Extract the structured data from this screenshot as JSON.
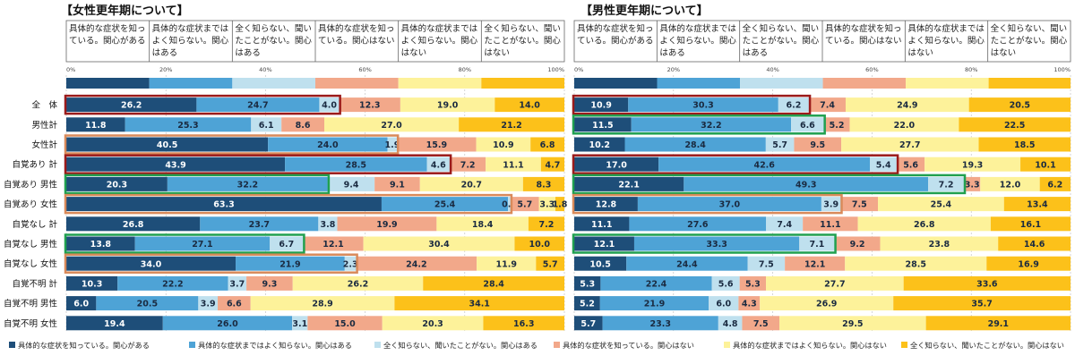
{
  "colors": {
    "c1": "#1e4e79",
    "c2": "#4ea3d6",
    "c3": "#bfe0ee",
    "c4": "#f2a88a",
    "c5": "#fdf29a",
    "c6": "#fcc11a",
    "highlight_red": "#9b1b1b",
    "highlight_orange": "#d98a5a",
    "highlight_green": "#20a050",
    "grid": "#bbbbbb"
  },
  "legend": [
    "具体的な症状を知っている。関心がある",
    "具体的な症状まではよく知らない。関心はある",
    "全く知らない、聞いたことがない。関心はある",
    "具体的な症状を知っている。関心はない",
    "具体的な症状まではよく知らない。関心はない",
    "全く知らない、聞いたことがない。関心はない"
  ],
  "chart_data": [
    {
      "type": "bar",
      "orientation": "horizontal-stacked-100",
      "title": "【女性更年期について】",
      "xlim": [
        0,
        100
      ],
      "xticks": [
        "0%",
        "20%",
        "40%",
        "60%",
        "80%",
        "100%"
      ],
      "header_categories": [
        "具体的な症状を知っている。関心がある",
        "具体的な症状まではよく知らない。関心はある",
        "全く知らない、聞いたことがない。関心はある",
        "具体的な症状を知っている。関心はない",
        "具体的な症状まではよく知らない。関心はない",
        "全く知らない、聞いたことがない。関心はない"
      ],
      "header_bar": [
        20.0,
        20.0,
        20.0,
        20.0,
        20.0,
        20.0
      ],
      "rows": [
        {
          "label": "全　体",
          "values": [
            26.2,
            24.7,
            4.0,
            12.3,
            19.0,
            14.0
          ],
          "value_labels": [
            "26.2",
            "24.7",
            "4.0",
            "12.3",
            "19.0",
            "14.0"
          ],
          "highlight": "red",
          "highlight_upto": 3
        },
        {
          "label": "男性計",
          "values": [
            11.8,
            25.3,
            6.1,
            8.6,
            27.0,
            21.2
          ],
          "value_labels": [
            "11.8",
            "25.3",
            "6.1",
            "8.6",
            "27.0",
            "21.2"
          ]
        },
        {
          "label": "女性計",
          "values": [
            40.5,
            24.0,
            1.9,
            15.9,
            10.9,
            6.8
          ],
          "value_labels": [
            "40.5",
            "24.0",
            "1.9",
            "15.9",
            "10.9",
            "6.8"
          ],
          "highlight": "orange",
          "highlight_upto": 3
        },
        {
          "label": "自覚あり 計",
          "values": [
            43.9,
            28.5,
            4.6,
            7.2,
            11.1,
            4.7
          ],
          "value_labels": [
            "43.9",
            "28.5",
            "4.6",
            "7.2",
            "11.1",
            "4.7"
          ],
          "highlight": "red",
          "highlight_upto": 3
        },
        {
          "label": "自覚あり 男性",
          "values": [
            20.3,
            32.2,
            9.4,
            9.1,
            20.7,
            8.3
          ],
          "value_labels": [
            "20.3",
            "32.2",
            "9.4",
            "9.1",
            "20.7",
            "8.3"
          ],
          "highlight": "green",
          "highlight_upto": 2
        },
        {
          "label": "自覚あり 女性",
          "values": [
            63.3,
            25.4,
            0.5,
            5.7,
            3.3,
            1.8
          ],
          "value_labels": [
            "63.3",
            "25.4",
            "0.5",
            "5.7",
            "3.3",
            "1.8"
          ],
          "highlight": "orange",
          "highlight_upto": 3
        },
        {
          "label": "自覚なし 計",
          "values": [
            26.8,
            23.7,
            3.8,
            19.9,
            18.4,
            7.2
          ],
          "value_labels": [
            "26.8",
            "23.7",
            "3.8",
            "19.9",
            "18.4",
            "7.2"
          ]
        },
        {
          "label": "自覚なし 男性",
          "values": [
            13.8,
            27.1,
            6.7,
            12.1,
            30.4,
            10.0
          ],
          "value_labels": [
            "13.8",
            "27.1",
            "6.7",
            "12.1",
            "30.4",
            "10.0"
          ],
          "highlight": "green",
          "highlight_upto": 3
        },
        {
          "label": "自覚なし 女性",
          "values": [
            34.0,
            21.9,
            2.3,
            24.2,
            11.9,
            5.7
          ],
          "value_labels": [
            "34.0",
            "21.9",
            "2.3",
            "24.2",
            "11.9",
            "5.7"
          ],
          "highlight": "orange",
          "highlight_upto": 3
        },
        {
          "label": "自覚不明 計",
          "values": [
            10.3,
            22.2,
            3.7,
            9.3,
            26.2,
            28.4
          ],
          "value_labels": [
            "10.3",
            "22.2",
            "3.7",
            "9.3",
            "26.2",
            "28.4"
          ]
        },
        {
          "label": "自覚不明 男性",
          "values": [
            6.0,
            20.5,
            3.9,
            6.6,
            28.9,
            34.1
          ],
          "value_labels": [
            "6.0",
            "20.5",
            "3.9",
            "6.6",
            "28.9",
            "34.1"
          ]
        },
        {
          "label": "自覚不明 女性",
          "values": [
            19.4,
            26.0,
            3.1,
            15.0,
            20.3,
            16.3
          ],
          "value_labels": [
            "19.4",
            "26.0",
            "3.1",
            "15.0",
            "20.3",
            "16.3"
          ]
        }
      ]
    },
    {
      "type": "bar",
      "orientation": "horizontal-stacked-100",
      "title": "【男性更年期について】",
      "xlim": [
        0,
        100
      ],
      "xticks": [
        "0%",
        "20%",
        "40%",
        "60%",
        "80%",
        "100%"
      ],
      "header_categories": [
        "具体的な症状を知っている。関心がある",
        "具体的な症状まではよく知らない。関心はある",
        "全く知らない、聞いたことがない。関心はある",
        "具体的な症状を知っている。関心はない",
        "具体的な症状まではよく知らない。関心はない",
        "全く知らない、聞いたことがない。関心はない"
      ],
      "header_bar": [
        16.7,
        16.7,
        16.7,
        16.7,
        16.7,
        16.5
      ],
      "rows": [
        {
          "label": "全　体",
          "values": [
            10.9,
            30.3,
            6.2,
            7.4,
            24.9,
            20.5
          ],
          "value_labels": [
            "10.9",
            "30.3",
            "6.2",
            "7.4",
            "24.9",
            "20.5"
          ],
          "highlight": "red",
          "highlight_upto": 3
        },
        {
          "label": "男性計",
          "values": [
            11.5,
            32.2,
            6.6,
            5.2,
            22.0,
            22.5
          ],
          "value_labels": [
            "11.5",
            "32.2",
            "6.6",
            "5.2",
            "22.0",
            "22.5"
          ],
          "highlight": "green",
          "highlight_upto": 3
        },
        {
          "label": "女性計",
          "values": [
            10.2,
            28.4,
            5.7,
            9.5,
            27.7,
            18.5
          ],
          "value_labels": [
            "10.2",
            "28.4",
            "5.7",
            "9.5",
            "27.7",
            "18.5"
          ]
        },
        {
          "label": "自覚あり 計",
          "values": [
            17.0,
            42.6,
            5.4,
            5.6,
            19.3,
            10.1
          ],
          "value_labels": [
            "17.0",
            "42.6",
            "5.4",
            "5.6",
            "19.3",
            "10.1"
          ],
          "highlight": "red",
          "highlight_upto": 3
        },
        {
          "label": "自覚あり 男性",
          "values": [
            22.1,
            49.3,
            7.2,
            3.3,
            12.0,
            6.2
          ],
          "value_labels": [
            "22.1",
            "49.3",
            "7.2",
            "3.3",
            "12.0",
            "6.2"
          ],
          "highlight": "green",
          "highlight_upto": 3
        },
        {
          "label": "自覚あり 女性",
          "values": [
            12.8,
            37.0,
            3.9,
            7.5,
            25.4,
            13.4
          ],
          "value_labels": [
            "12.8",
            "37.0",
            "3.9",
            "7.5",
            "25.4",
            "13.4"
          ],
          "highlight": "orange",
          "highlight_upto": 3
        },
        {
          "label": "自覚なし 計",
          "values": [
            11.1,
            27.6,
            7.4,
            11.1,
            26.8,
            16.1
          ],
          "value_labels": [
            "11.1",
            "27.6",
            "7.4",
            "11.1",
            "26.8",
            "16.1"
          ]
        },
        {
          "label": "自覚なし 男性",
          "values": [
            12.1,
            33.3,
            7.1,
            9.2,
            23.8,
            14.6
          ],
          "value_labels": [
            "12.1",
            "33.3",
            "7.1",
            "9.2",
            "23.8",
            "14.6"
          ],
          "highlight": "green",
          "highlight_upto": 3
        },
        {
          "label": "自覚なし 女性",
          "values": [
            10.5,
            24.4,
            7.5,
            12.1,
            28.5,
            16.9
          ],
          "value_labels": [
            "10.5",
            "24.4",
            "7.5",
            "12.1",
            "28.5",
            "16.9"
          ]
        },
        {
          "label": "自覚不明 計",
          "values": [
            5.3,
            22.4,
            5.6,
            5.3,
            27.7,
            33.6
          ],
          "value_labels": [
            "5.3",
            "22.4",
            "5.6",
            "5.3",
            "27.7",
            "33.6"
          ]
        },
        {
          "label": "自覚不明 男性",
          "values": [
            5.2,
            21.9,
            6.0,
            4.3,
            26.9,
            35.7
          ],
          "value_labels": [
            "5.2",
            "21.9",
            "6.0",
            "4.3",
            "26.9",
            "35.7"
          ]
        },
        {
          "label": "自覚不明 女性",
          "values": [
            5.7,
            23.3,
            4.8,
            7.5,
            29.5,
            29.1
          ],
          "value_labels": [
            "5.7",
            "23.3",
            "4.8",
            "7.5",
            "29.5",
            "29.1"
          ]
        }
      ]
    }
  ]
}
